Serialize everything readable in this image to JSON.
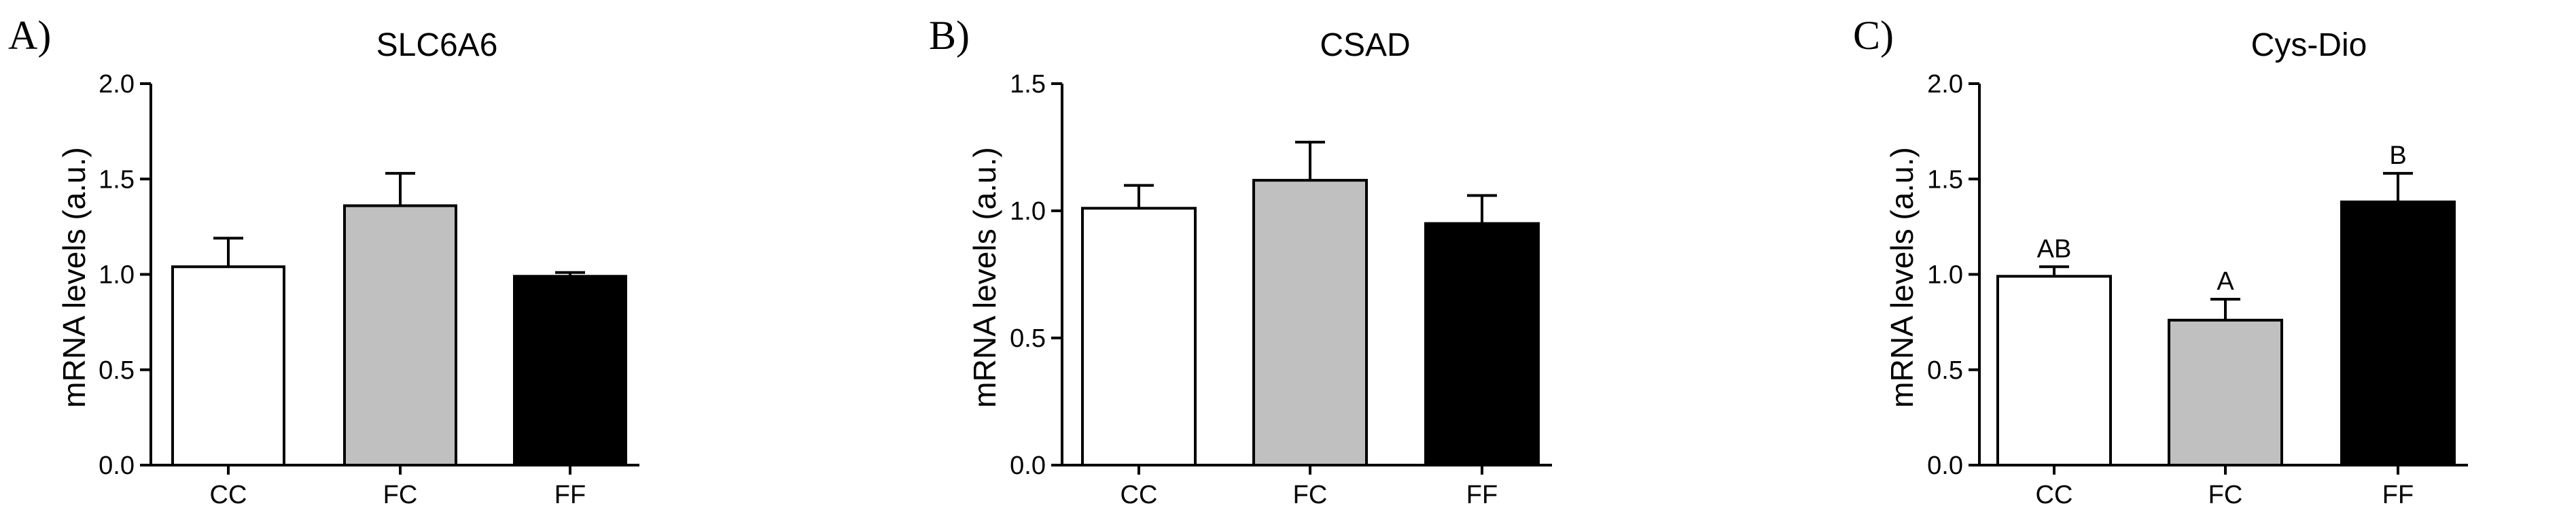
{
  "chart_data": [
    {
      "type": "bar",
      "panel": "A)",
      "title": "SLC6A6",
      "ylabel": "mRNA levels (a.u.)",
      "xlabel": "",
      "ylim": [
        0,
        2.0
      ],
      "yticks": [
        "0.0",
        "0.5",
        "1.0",
        "1.5",
        "2.0"
      ],
      "categories": [
        "CC",
        "FC",
        "FF"
      ],
      "values": [
        1.04,
        1.36,
        0.99
      ],
      "errors": [
        0.15,
        0.17,
        0.02
      ],
      "bar_colors": [
        "#ffffff",
        "#c0c0c0",
        "#000000"
      ],
      "significance": [
        "",
        "",
        ""
      ]
    },
    {
      "type": "bar",
      "panel": "B)",
      "title": "CSAD",
      "ylabel": "mRNA levels (a.u.)",
      "xlabel": "",
      "ylim": [
        0,
        1.5
      ],
      "yticks": [
        "0.0",
        "0.5",
        "1.0",
        "1.5"
      ],
      "categories": [
        "CC",
        "FC",
        "FF"
      ],
      "values": [
        1.01,
        1.12,
        0.95
      ],
      "errors": [
        0.09,
        0.15,
        0.11
      ],
      "bar_colors": [
        "#ffffff",
        "#c0c0c0",
        "#000000"
      ],
      "significance": [
        "",
        "",
        ""
      ]
    },
    {
      "type": "bar",
      "panel": "C)",
      "title": "Cys-Dio",
      "ylabel": "mRNA levels (a.u.)",
      "xlabel": "",
      "ylim": [
        0,
        2.0
      ],
      "yticks": [
        "0.0",
        "0.5",
        "1.0",
        "1.5",
        "2.0"
      ],
      "categories": [
        "CC",
        "FC",
        "FF"
      ],
      "values": [
        0.99,
        0.76,
        1.38
      ],
      "errors": [
        0.05,
        0.11,
        0.15
      ],
      "bar_colors": [
        "#ffffff",
        "#c0c0c0",
        "#000000"
      ],
      "significance": [
        "AB",
        "A",
        "B"
      ]
    }
  ]
}
